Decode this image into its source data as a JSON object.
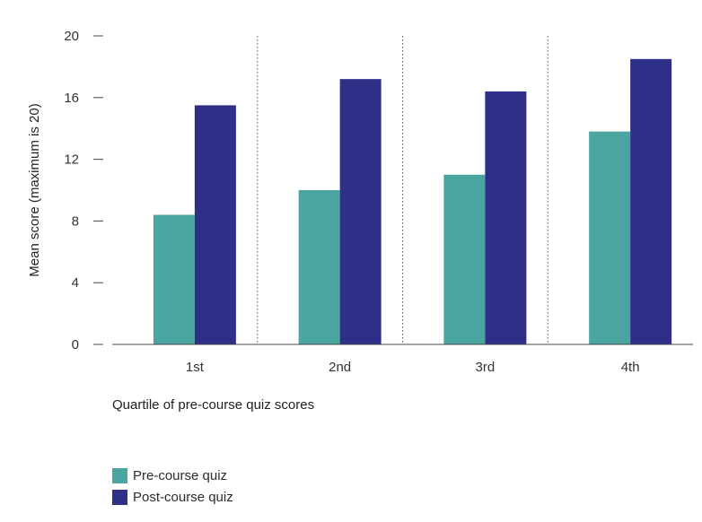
{
  "chart_data": {
    "type": "bar",
    "categories": [
      "1st",
      "2nd",
      "3rd",
      "4th"
    ],
    "series": [
      {
        "name": "Pre-course quiz",
        "values": [
          8.4,
          10.0,
          11.0,
          13.8
        ],
        "color": "#4aa5a0"
      },
      {
        "name": "Post-course quiz",
        "values": [
          15.5,
          17.2,
          16.4,
          18.5
        ],
        "color": "#2e3088"
      }
    ],
    "xlabel": "Quartile of pre-course quiz scores",
    "ylabel": "Mean score (maximum is 20)",
    "ylim": [
      0,
      20
    ],
    "yticks": [
      0,
      4,
      8,
      12,
      16,
      20
    ],
    "grid": false,
    "category_separators": "dotted",
    "legend_position": "bottom-left"
  }
}
